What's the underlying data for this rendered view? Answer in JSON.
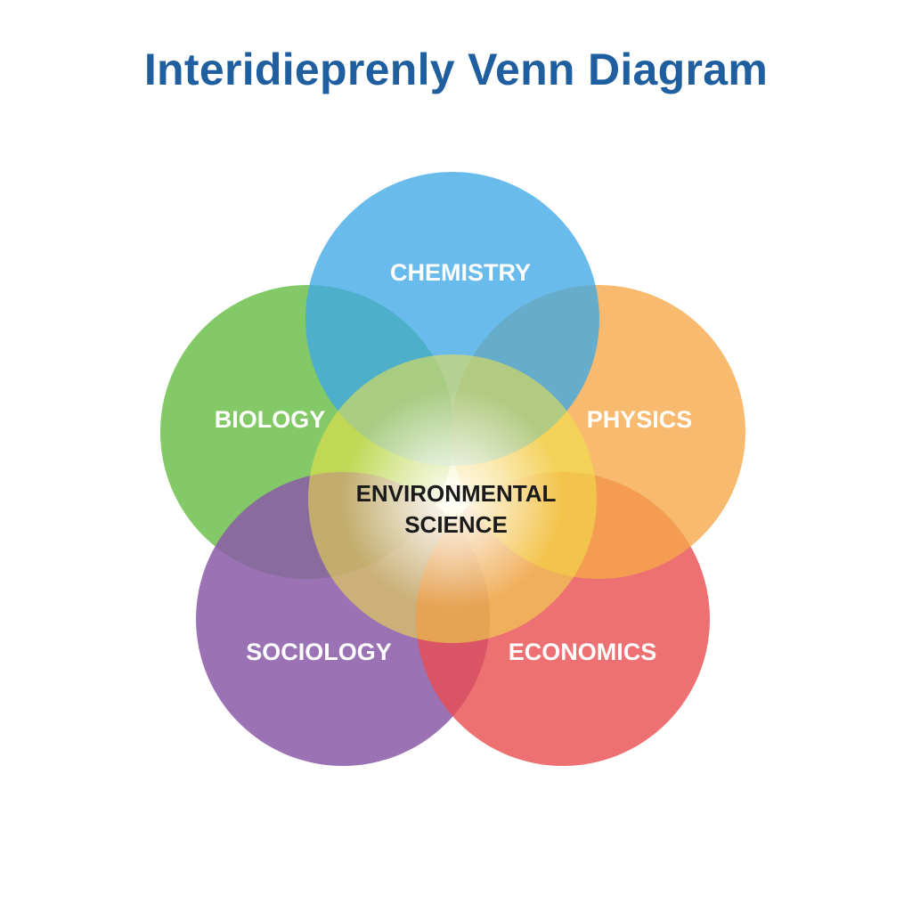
{
  "title": "Interidieprenly Venn Diagram",
  "sets": [
    {
      "id": "chemistry",
      "label": "CHEMISTRY",
      "color": "#3ea8e6"
    },
    {
      "id": "biology",
      "label": "BIOLOGY",
      "color": "#6fbf4e"
    },
    {
      "id": "physics",
      "label": "PHYSICS",
      "color": "#f5a94a"
    },
    {
      "id": "sociology",
      "label": "SOCIOLOGY",
      "color": "#8a5aa8"
    },
    {
      "id": "economics",
      "label": "ECONOMICS",
      "color": "#e94c50"
    }
  ],
  "center": {
    "label_line1": "ENVIRONMENTAL",
    "label_line2": "SCIENCE",
    "color": "#f3e347"
  },
  "colors": {
    "title": "#1f5fa0",
    "background": "#ffffff"
  }
}
